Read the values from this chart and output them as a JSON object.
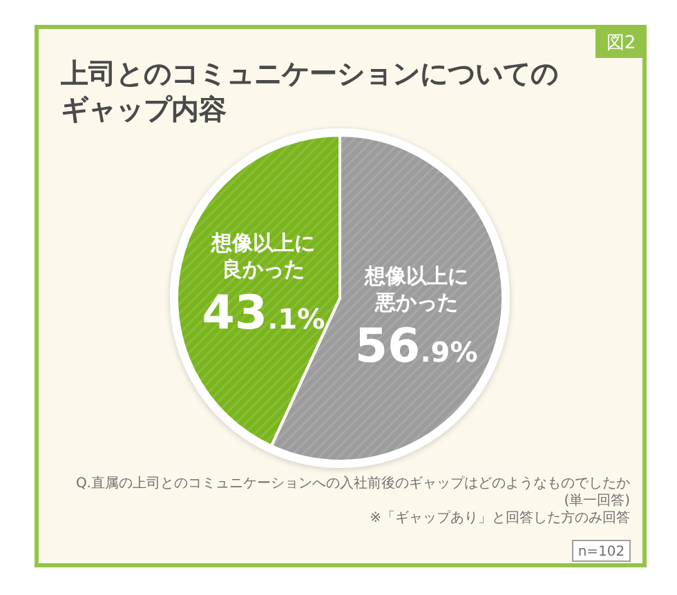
{
  "chart_data": {
    "type": "pie",
    "title": "上司とのコミュニケーションについてのギャップ内容",
    "categories": [
      "想像以上に悪かった",
      "想像以上に良かった"
    ],
    "values": [
      56.9,
      43.1
    ],
    "colors": [
      "#9c9c9c",
      "#7ab51e"
    ],
    "value_labels": [
      "56.9%",
      "43.1%"
    ],
    "annotations": [
      "図2",
      "Q.直属の上司とのコミュニケーションへの入社前後のギャップはどのようなものでしたか(単一回答)",
      "※「ギャップあり」と回答した方のみ回答",
      "n=102"
    ]
  }
}
